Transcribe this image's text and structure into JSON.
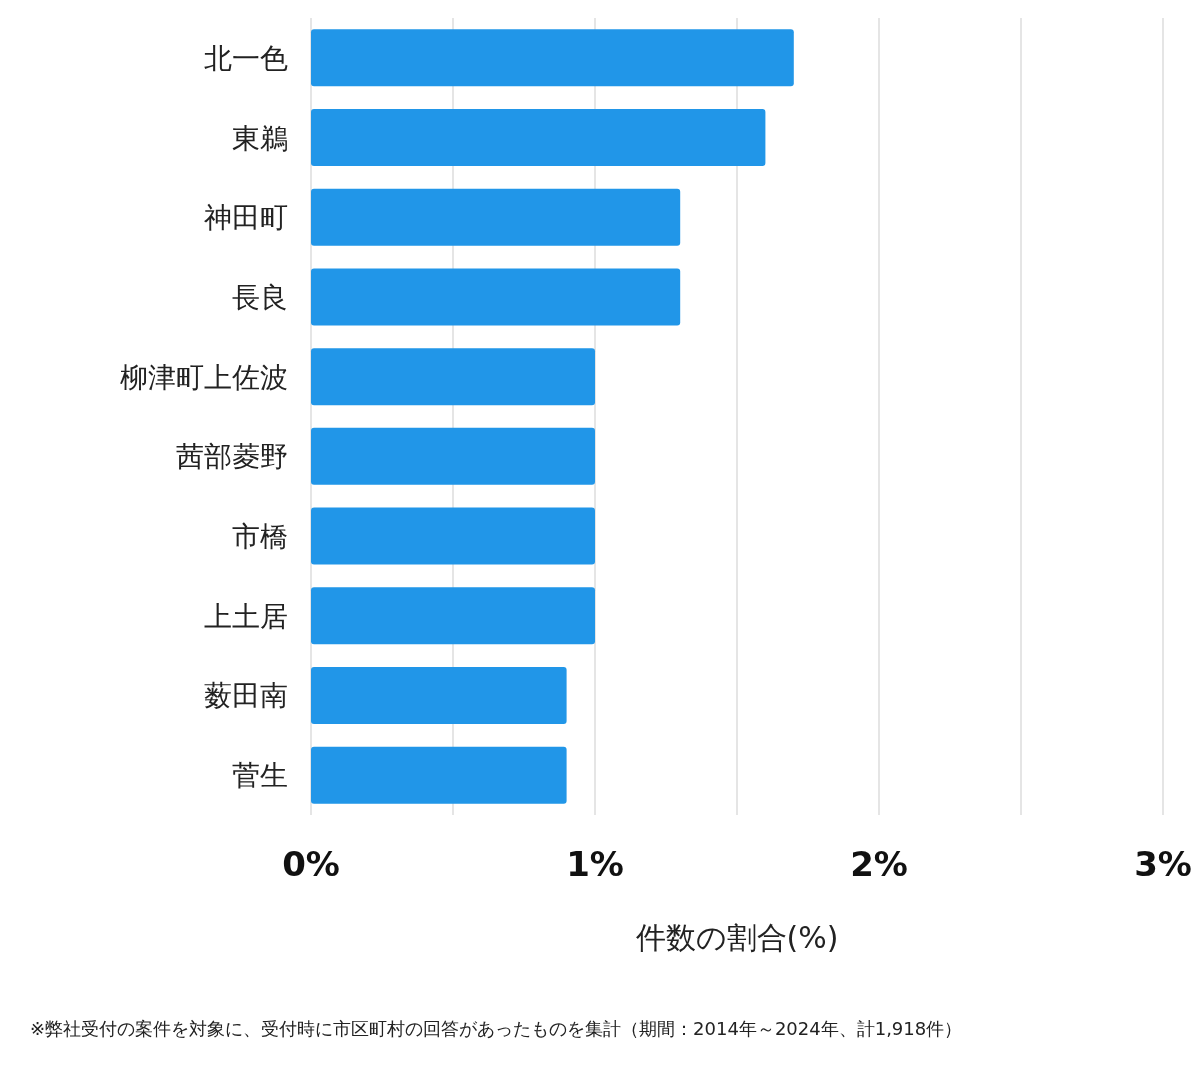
{
  "chart_data": {
    "type": "bar",
    "orientation": "horizontal",
    "categories": [
      "北一色",
      "東鵜",
      "神田町",
      "長良",
      "柳津町上佐波",
      "茜部菱野",
      "市橋",
      "上土居",
      "薮田南",
      "菅生"
    ],
    "values": [
      1.7,
      1.6,
      1.3,
      1.3,
      1.0,
      1.0,
      1.0,
      1.0,
      0.9,
      0.9
    ],
    "color": "#2196e8",
    "xlim": [
      0,
      3
    ],
    "xticks": [
      {
        "value": 0,
        "label": "0%"
      },
      {
        "value": 0.5,
        "label": null
      },
      {
        "value": 1,
        "label": "1%"
      },
      {
        "value": 1.5,
        "label": null
      },
      {
        "value": 2,
        "label": "2%"
      },
      {
        "value": 2.5,
        "label": null
      },
      {
        "value": 3,
        "label": "3%"
      }
    ],
    "xlabel": "件数の割合(%)",
    "grid": "x",
    "annotations": [
      "※弊社受付の案件を対象に、受付時に市区町村の回答があったものを集計（期間：2014年～2024年、計1,918件）"
    ]
  }
}
